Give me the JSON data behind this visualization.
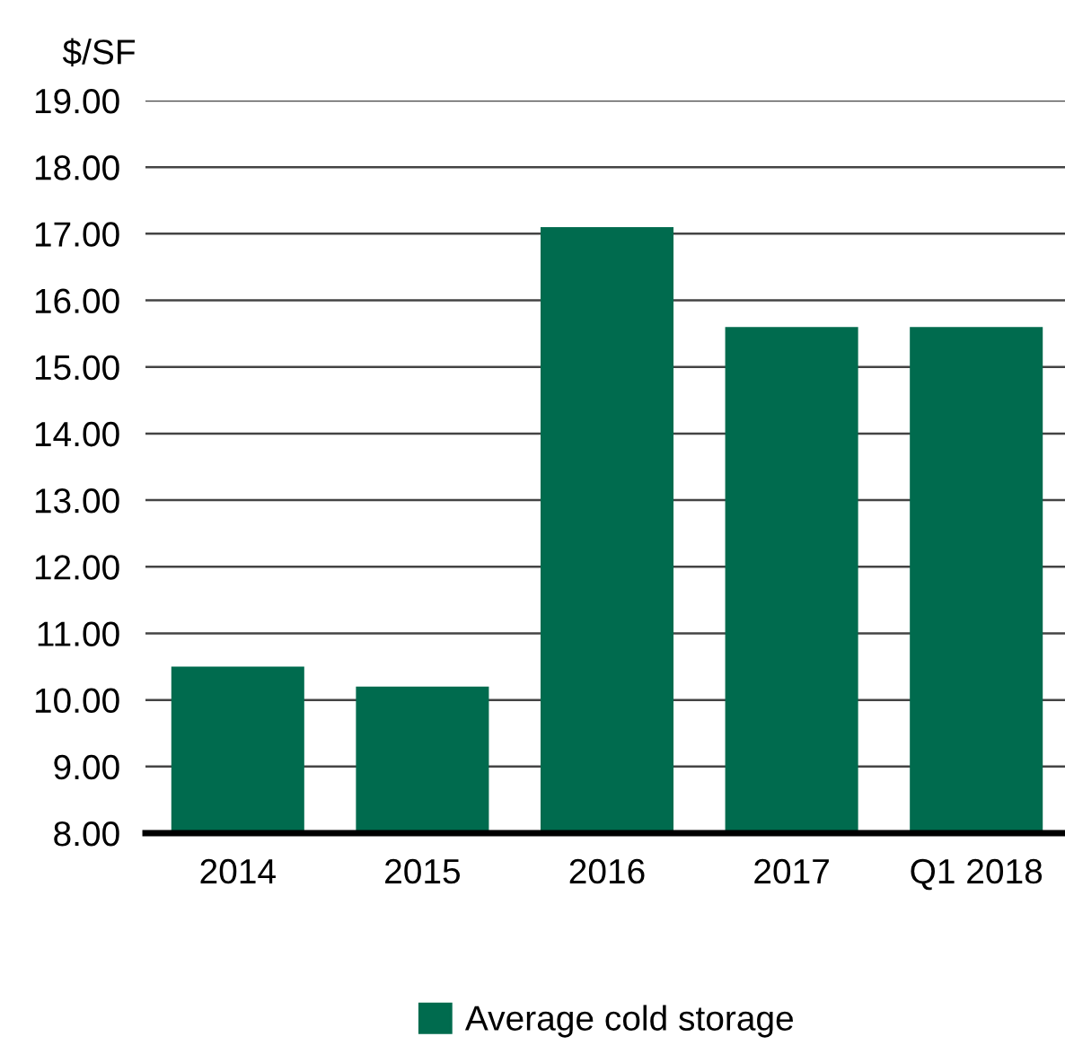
{
  "chart_data": {
    "type": "bar",
    "ylabel": "$/SF",
    "categories": [
      "2014",
      "2015",
      "2016",
      "2017",
      "Q1 2018"
    ],
    "series": [
      {
        "name": "Average cold storage",
        "color": "#006b4e",
        "values": [
          10.5,
          10.2,
          17.1,
          15.6,
          15.6
        ]
      }
    ],
    "ylim": [
      8,
      19
    ],
    "yticks": [
      {
        "value": 8,
        "label": "8.00"
      },
      {
        "value": 9,
        "label": "9.00"
      },
      {
        "value": 10,
        "label": "10.00"
      },
      {
        "value": 11,
        "label": "11.00"
      },
      {
        "value": 12,
        "label": "12.00"
      },
      {
        "value": 13,
        "label": "13.00"
      },
      {
        "value": 14,
        "label": "14.00"
      },
      {
        "value": 15,
        "label": "15.00"
      },
      {
        "value": 16,
        "label": "16.00"
      },
      {
        "value": 17,
        "label": "17.00"
      },
      {
        "value": 18,
        "label": "18.00"
      },
      {
        "value": 19,
        "label": "19.00"
      }
    ],
    "grid": "y",
    "legend": "bottom"
  }
}
